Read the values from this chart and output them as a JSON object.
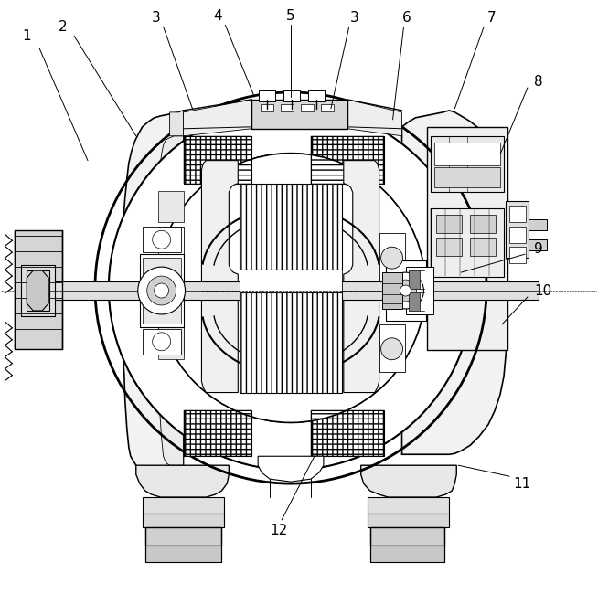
{
  "background_color": "#ffffff",
  "line_color": "#000000",
  "figsize": [
    6.54,
    6.5
  ],
  "dpi": 100,
  "labels_info": [
    [
      "1",
      28,
      38,
      42,
      52,
      95,
      175
    ],
    [
      "2",
      68,
      28,
      80,
      38,
      148,
      148
    ],
    [
      "3",
      170,
      18,
      178,
      28,
      210,
      118
    ],
    [
      "4",
      238,
      16,
      246,
      26,
      278,
      105
    ],
    [
      "5",
      318,
      16,
      318,
      26,
      318,
      105
    ],
    [
      "3",
      388,
      18,
      382,
      28,
      362,
      118
    ],
    [
      "6",
      445,
      18,
      442,
      28,
      430,
      130
    ],
    [
      "7",
      538,
      18,
      530,
      28,
      498,
      118
    ],
    [
      "8",
      590,
      88,
      578,
      95,
      548,
      168
    ],
    [
      "9",
      590,
      272,
      575,
      278,
      505,
      298
    ],
    [
      "10",
      595,
      318,
      578,
      325,
      550,
      355
    ],
    [
      "11",
      572,
      530,
      558,
      522,
      502,
      510
    ],
    [
      "12",
      305,
      582,
      308,
      570,
      345,
      498
    ]
  ]
}
